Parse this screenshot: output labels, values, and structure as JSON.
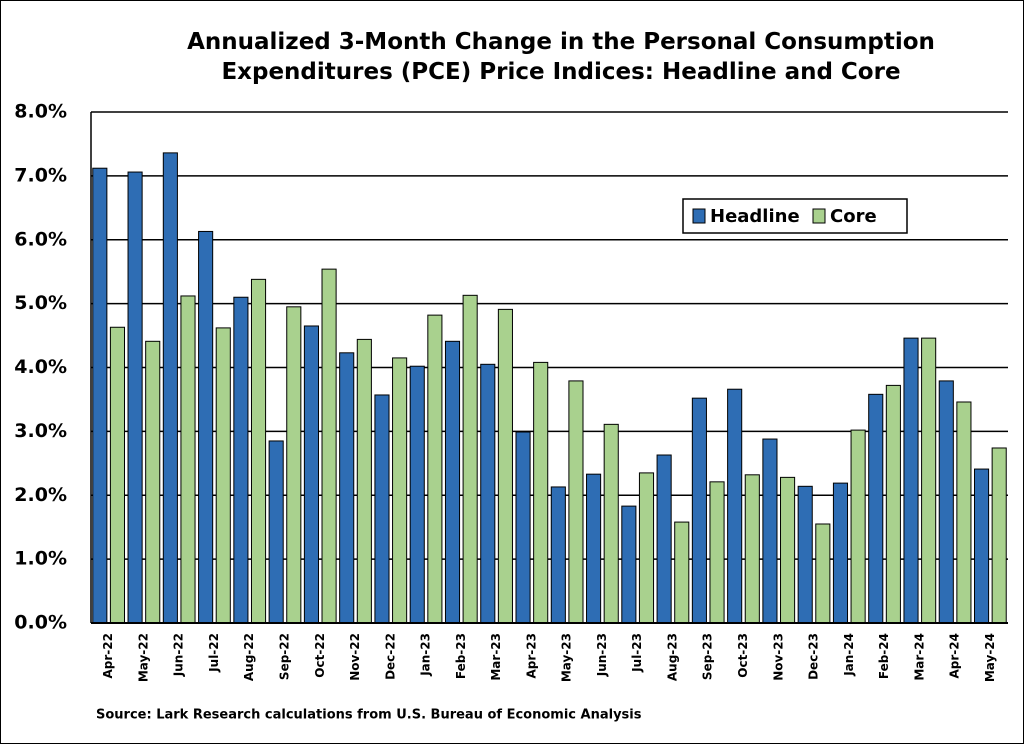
{
  "chart_data": {
    "type": "bar",
    "title": "Annualized 3-Month Change in the Personal Consumption Expenditures (PCE) Price Indices: Headline and Core",
    "source": "Source:  Lark Research calculations from U.S. Bureau of Economic Analysis",
    "categories": [
      "Apr-22",
      "May-22",
      "Jun-22",
      "Jul-22",
      "Aug-22",
      "Sep-22",
      "Oct-22",
      "Nov-22",
      "Dec-22",
      "Jan-23",
      "Feb-23",
      "Mar-23",
      "Apr-23",
      "May-23",
      "Jun-23",
      "Jul-23",
      "Aug-23",
      "Sep-23",
      "Oct-23",
      "Nov-23",
      "Dec-23",
      "Jan-24",
      "Feb-24",
      "Mar-24",
      "Apr-24",
      "May-24"
    ],
    "series": [
      {
        "name": "Headline",
        "color": "#2e6db4",
        "values": [
          7.12,
          7.06,
          7.36,
          6.13,
          5.1,
          2.85,
          4.65,
          4.23,
          3.57,
          4.02,
          4.41,
          4.05,
          2.99,
          2.13,
          2.33,
          1.83,
          2.63,
          3.52,
          3.66,
          2.88,
          2.14,
          2.19,
          3.58,
          4.46,
          3.79,
          2.41
        ]
      },
      {
        "name": "Core",
        "color": "#a9d18e",
        "values": [
          4.63,
          4.41,
          5.12,
          4.62,
          5.38,
          4.95,
          5.54,
          4.44,
          4.15,
          4.82,
          5.13,
          4.91,
          4.08,
          3.79,
          3.11,
          2.35,
          1.58,
          2.21,
          2.32,
          2.28,
          1.55,
          3.02,
          3.72,
          4.46,
          3.46,
          2.74
        ]
      }
    ],
    "ylim": [
      0,
      8
    ],
    "yticks": [
      {
        "value": 0,
        "label": "0.0%"
      },
      {
        "value": 1,
        "label": "1.0%"
      },
      {
        "value": 2,
        "label": "2.0%"
      },
      {
        "value": 3,
        "label": "3.0%"
      },
      {
        "value": 4,
        "label": "4.0%"
      },
      {
        "value": 5,
        "label": "5.0%"
      },
      {
        "value": 6,
        "label": "6.0%"
      },
      {
        "value": 7,
        "label": "7.0%"
      },
      {
        "value": 8,
        "label": "8.0%"
      }
    ],
    "grid": true,
    "legend": "upper right"
  }
}
